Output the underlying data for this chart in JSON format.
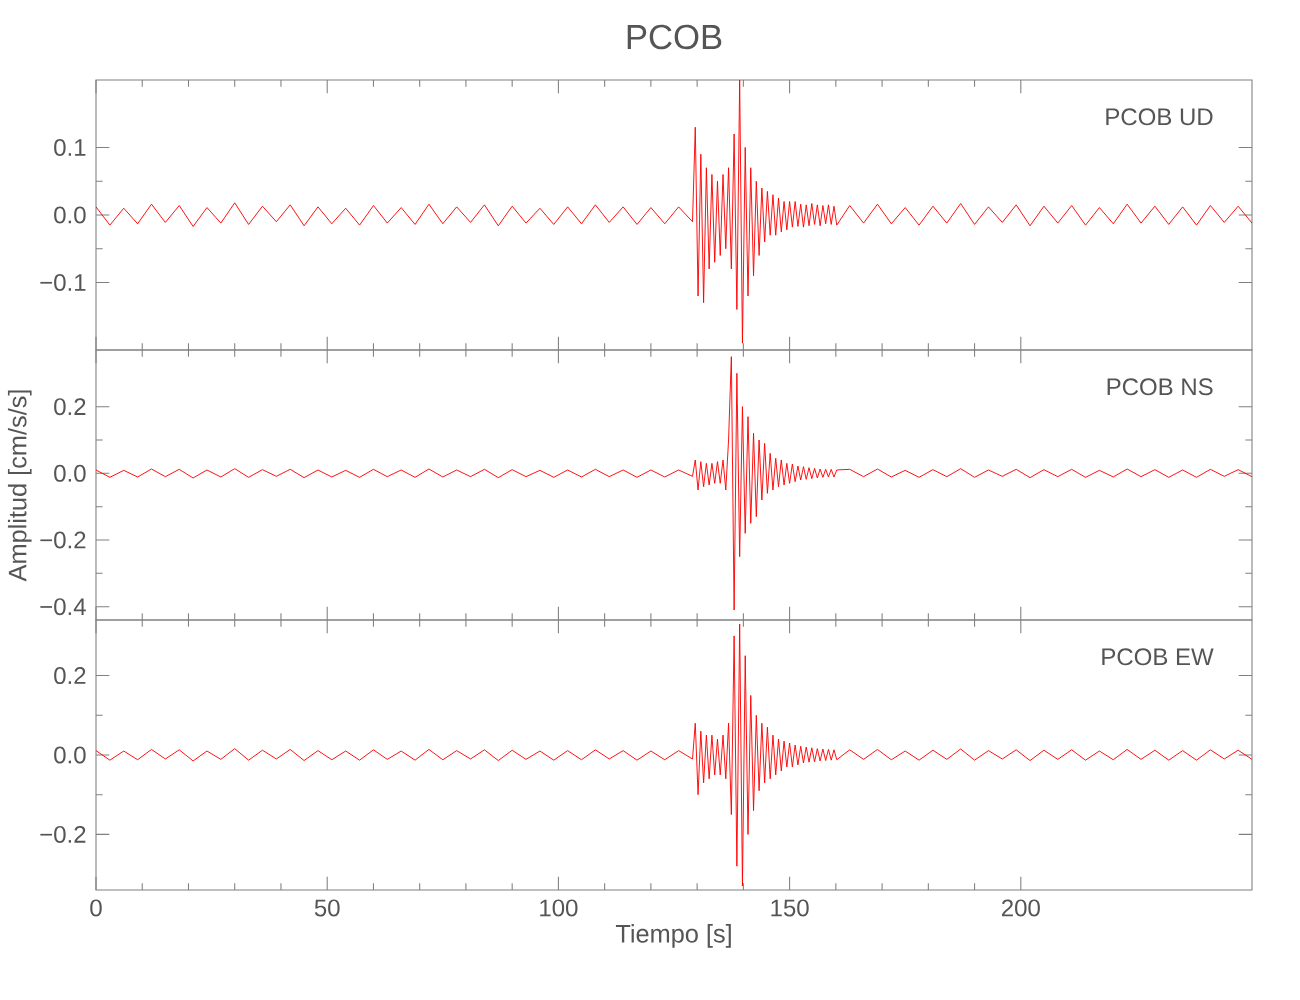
{
  "chart_data": [
    {
      "type": "line",
      "title": "PCOB",
      "annotations": [
        "PCOB UD"
      ],
      "xlim": [
        0,
        250
      ],
      "xticks": [
        0,
        50,
        100,
        150,
        200
      ],
      "ylim": [
        -0.2,
        0.2
      ],
      "yticks": [
        {
          "value": -0.1,
          "label": "−0.1"
        },
        {
          "value": 0,
          "label": "0.0"
        },
        {
          "value": 0.1,
          "label": "0.1"
        }
      ],
      "tick_labels": "y",
      "series": [
        {
          "color": "#ff0000",
          "x": [
            0,
            3,
            6,
            9,
            12,
            15,
            18,
            21,
            24,
            27,
            30,
            33,
            36,
            39,
            42,
            45,
            48,
            51,
            54,
            57,
            60,
            63,
            66,
            69,
            72,
            75,
            78,
            81,
            84,
            87,
            90,
            93,
            96,
            99,
            102,
            105,
            108,
            111,
            114,
            117,
            120,
            123,
            126,
            129,
            129.6,
            130.2,
            130.8,
            131.4,
            132.0,
            132.6,
            133.2,
            133.8,
            134.4,
            135.0,
            135.6,
            136.2,
            136.8,
            137.4,
            138.0,
            138.6,
            139.2,
            139.8,
            140.4,
            141.0,
            141.6,
            142.2,
            142.8,
            143.4,
            144.0,
            144.6,
            145.2,
            145.8,
            146.4,
            147.0,
            147.6,
            148.2,
            148.8,
            149.4,
            150.0,
            150.6,
            151.2,
            151.8,
            152.4,
            153.0,
            153.6,
            154.2,
            154.8,
            155.4,
            156.0,
            156.6,
            157.2,
            157.8,
            158.4,
            159.0,
            159.6,
            160.2,
            163,
            166,
            169,
            172,
            175,
            178,
            181,
            184,
            187,
            190,
            193,
            196,
            199,
            202,
            205,
            208,
            211,
            214,
            217,
            220,
            223,
            226,
            229,
            232,
            235,
            238,
            241,
            244,
            247,
            250
          ],
          "values": [
            0.012,
            -0.015,
            0.01,
            -0.013,
            0.016,
            -0.011,
            0.014,
            -0.017,
            0.011,
            -0.012,
            0.018,
            -0.014,
            0.013,
            -0.01,
            0.015,
            -0.016,
            0.012,
            -0.013,
            0.01,
            -0.015,
            0.014,
            -0.012,
            0.011,
            -0.014,
            0.016,
            -0.013,
            0.012,
            -0.011,
            0.015,
            -0.016,
            0.013,
            -0.012,
            0.01,
            -0.014,
            0.012,
            -0.013,
            0.015,
            -0.011,
            0.012,
            -0.014,
            0.011,
            -0.013,
            0.012,
            -0.01,
            0.13,
            -0.12,
            0.09,
            -0.13,
            0.07,
            -0.08,
            0.06,
            -0.07,
            0.05,
            -0.06,
            0.06,
            -0.05,
            0.07,
            -0.08,
            0.12,
            -0.14,
            0.2,
            -0.19,
            0.1,
            -0.12,
            0.07,
            -0.09,
            0.05,
            -0.06,
            0.04,
            -0.04,
            0.035,
            -0.03,
            0.03,
            -0.03,
            0.025,
            -0.025,
            0.02,
            -0.022,
            0.02,
            -0.018,
            0.02,
            -0.017,
            0.016,
            -0.018,
            0.015,
            -0.016,
            0.017,
            -0.014,
            0.015,
            -0.016,
            0.014,
            -0.013,
            0.015,
            -0.014,
            0.013,
            -0.015,
            0.014,
            -0.012,
            0.016,
            -0.013,
            0.011,
            -0.015,
            0.013,
            -0.012,
            0.017,
            -0.014,
            0.012,
            -0.011,
            0.015,
            -0.016,
            0.013,
            -0.012,
            0.014,
            -0.015,
            0.011,
            -0.013,
            0.016,
            -0.012,
            0.013,
            -0.014,
            0.012,
            -0.015,
            0.014,
            -0.011,
            0.013,
            -0.012
          ]
        }
      ]
    },
    {
      "type": "line",
      "ylabel": "Amplitud [cm/s/s]",
      "annotations": [
        "PCOB NS"
      ],
      "xlim": [
        0,
        250
      ],
      "xticks": [
        0,
        50,
        100,
        150,
        200
      ],
      "ylim": [
        -0.44,
        0.37
      ],
      "yticks": [
        {
          "value": -0.4,
          "label": "−0.4"
        },
        {
          "value": -0.2,
          "label": "−0.2"
        },
        {
          "value": 0,
          "label": "0.0"
        },
        {
          "value": 0.2,
          "label": "0.2"
        }
      ],
      "tick_labels": "y",
      "series": [
        {
          "color": "#ff0000",
          "x": [
            0,
            3,
            6,
            9,
            12,
            15,
            18,
            21,
            24,
            27,
            30,
            33,
            36,
            39,
            42,
            45,
            48,
            51,
            54,
            57,
            60,
            63,
            66,
            69,
            72,
            75,
            78,
            81,
            84,
            87,
            90,
            93,
            96,
            99,
            102,
            105,
            108,
            111,
            114,
            117,
            120,
            123,
            126,
            129,
            129.6,
            130.2,
            130.8,
            131.4,
            132.0,
            132.6,
            133.2,
            133.8,
            134.4,
            135.0,
            135.6,
            136.2,
            136.8,
            137.4,
            138.0,
            138.6,
            139.2,
            139.8,
            140.4,
            141.0,
            141.6,
            142.2,
            142.8,
            143.4,
            144.0,
            144.6,
            145.2,
            145.8,
            146.4,
            147.0,
            147.6,
            148.2,
            148.8,
            149.4,
            150.0,
            150.6,
            151.2,
            151.8,
            152.4,
            153.0,
            153.6,
            154.2,
            154.8,
            155.4,
            156.0,
            156.6,
            157.2,
            157.8,
            158.4,
            159.0,
            159.6,
            160.2,
            163,
            166,
            169,
            172,
            175,
            178,
            181,
            184,
            187,
            190,
            193,
            196,
            199,
            202,
            205,
            208,
            211,
            214,
            217,
            220,
            223,
            226,
            229,
            232,
            235,
            238,
            241,
            244,
            247,
            250
          ],
          "values": [
            0.01,
            -0.012,
            0.009,
            -0.011,
            0.013,
            -0.01,
            0.012,
            -0.014,
            0.01,
            -0.011,
            0.014,
            -0.012,
            0.011,
            -0.009,
            0.012,
            -0.013,
            0.01,
            -0.011,
            0.009,
            -0.012,
            0.012,
            -0.01,
            0.01,
            -0.012,
            0.013,
            -0.011,
            0.01,
            -0.01,
            0.012,
            -0.013,
            0.011,
            -0.01,
            0.009,
            -0.012,
            0.01,
            -0.011,
            0.012,
            -0.01,
            0.01,
            -0.012,
            0.01,
            -0.011,
            0.01,
            -0.009,
            0.04,
            -0.05,
            0.035,
            -0.04,
            0.03,
            -0.035,
            0.03,
            -0.03,
            0.035,
            -0.03,
            0.04,
            -0.05,
            0.1,
            0.35,
            -0.41,
            0.3,
            -0.25,
            0.2,
            -0.18,
            0.17,
            -0.15,
            0.12,
            -0.13,
            0.1,
            -0.08,
            0.09,
            -0.06,
            0.06,
            -0.05,
            0.045,
            -0.04,
            0.04,
            -0.035,
            0.03,
            -0.03,
            0.028,
            -0.025,
            0.022,
            -0.02,
            0.02,
            -0.018,
            0.017,
            -0.016,
            0.015,
            -0.014,
            0.013,
            -0.012,
            0.012,
            -0.011,
            0.012,
            -0.011,
            0.01,
            0.012,
            -0.01,
            0.013,
            -0.011,
            0.009,
            -0.012,
            0.011,
            -0.01,
            0.014,
            -0.012,
            0.01,
            -0.009,
            0.012,
            -0.013,
            0.011,
            -0.01,
            0.012,
            -0.012,
            0.009,
            -0.011,
            0.013,
            -0.01,
            0.011,
            -0.012,
            0.01,
            -0.012,
            0.012,
            -0.009,
            0.011,
            -0.01
          ]
        }
      ]
    },
    {
      "type": "line",
      "xlabel": "Tiempo [s]",
      "annotations": [
        "PCOB EW"
      ],
      "xlim": [
        0,
        250
      ],
      "xticks": [
        0,
        50,
        100,
        150,
        200
      ],
      "ylim": [
        -0.34,
        0.34
      ],
      "yticks": [
        {
          "value": -0.2,
          "label": "−0.2"
        },
        {
          "value": 0,
          "label": "0.0"
        },
        {
          "value": 0.2,
          "label": "0.2"
        }
      ],
      "series": [
        {
          "color": "#ff0000",
          "x": [
            0,
            3,
            6,
            9,
            12,
            15,
            18,
            21,
            24,
            27,
            30,
            33,
            36,
            39,
            42,
            45,
            48,
            51,
            54,
            57,
            60,
            63,
            66,
            69,
            72,
            75,
            78,
            81,
            84,
            87,
            90,
            93,
            96,
            99,
            102,
            105,
            108,
            111,
            114,
            117,
            120,
            123,
            126,
            129,
            129.6,
            130.2,
            130.8,
            131.4,
            132.0,
            132.6,
            133.2,
            133.8,
            134.4,
            135.0,
            135.6,
            136.2,
            136.8,
            137.4,
            138.0,
            138.6,
            139.2,
            139.8,
            140.4,
            141.0,
            141.6,
            142.2,
            142.8,
            143.4,
            144.0,
            144.6,
            145.2,
            145.8,
            146.4,
            147.0,
            147.6,
            148.2,
            148.8,
            149.4,
            150.0,
            150.6,
            151.2,
            151.8,
            152.4,
            153.0,
            153.6,
            154.2,
            154.8,
            155.4,
            156.0,
            156.6,
            157.2,
            157.8,
            158.4,
            159.0,
            159.6,
            160.2,
            163,
            166,
            169,
            172,
            175,
            178,
            181,
            184,
            187,
            190,
            193,
            196,
            199,
            202,
            205,
            208,
            211,
            214,
            217,
            220,
            223,
            226,
            229,
            232,
            235,
            238,
            241,
            244,
            247,
            250
          ],
          "values": [
            0.011,
            -0.013,
            0.01,
            -0.012,
            0.014,
            -0.01,
            0.013,
            -0.015,
            0.01,
            -0.011,
            0.016,
            -0.013,
            0.012,
            -0.01,
            0.014,
            -0.014,
            0.011,
            -0.012,
            0.01,
            -0.013,
            0.013,
            -0.011,
            0.01,
            -0.013,
            0.014,
            -0.012,
            0.011,
            -0.01,
            0.013,
            -0.014,
            0.012,
            -0.011,
            0.01,
            -0.013,
            0.011,
            -0.012,
            0.013,
            -0.01,
            0.011,
            -0.013,
            0.01,
            -0.012,
            0.011,
            -0.01,
            0.08,
            -0.1,
            0.06,
            -0.07,
            0.05,
            -0.06,
            0.05,
            -0.05,
            0.04,
            -0.05,
            0.05,
            -0.06,
            0.08,
            -0.15,
            0.3,
            -0.28,
            0.33,
            -0.33,
            0.25,
            -0.2,
            0.15,
            -0.14,
            0.1,
            -0.09,
            0.08,
            -0.07,
            0.07,
            -0.06,
            0.05,
            -0.05,
            0.04,
            -0.04,
            0.035,
            -0.03,
            0.03,
            -0.03,
            0.025,
            -0.025,
            0.022,
            -0.02,
            0.02,
            -0.018,
            0.018,
            -0.017,
            0.016,
            -0.015,
            0.015,
            -0.014,
            0.014,
            -0.013,
            0.013,
            -0.012,
            0.013,
            -0.011,
            0.014,
            -0.012,
            0.01,
            -0.013,
            0.012,
            -0.011,
            0.015,
            -0.013,
            0.011,
            -0.01,
            0.013,
            -0.014,
            0.012,
            -0.011,
            0.013,
            -0.013,
            0.01,
            -0.012,
            0.014,
            -0.011,
            0.012,
            -0.013,
            0.011,
            -0.013,
            0.013,
            -0.01,
            0.012,
            -0.011
          ]
        }
      ]
    }
  ]
}
